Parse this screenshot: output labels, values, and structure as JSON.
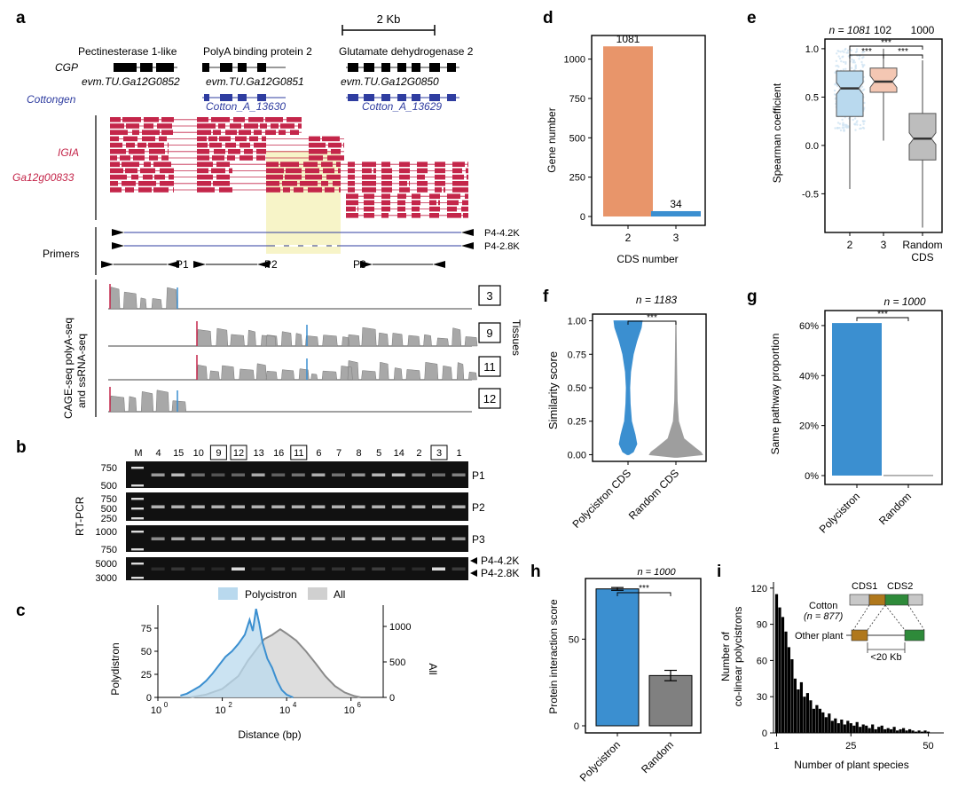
{
  "panels": {
    "a": {
      "label": "a",
      "scale_bar": "2 Kb",
      "genes": [
        "Pectinesterase 1-like",
        "PolyA binding protein 2",
        "Glutamate dehydrogenase 2"
      ],
      "cgp": {
        "label": "CGP",
        "ids": [
          "evm.TU.Ga12G0852",
          "evm.TU.Ga12G0851",
          "evm.TU.Ga12G0850"
        ]
      },
      "cottongen": {
        "label": "Cottongen",
        "ids": [
          "Cotton_A_13630",
          "Cotton_A_13629"
        ]
      },
      "igia": {
        "label": "IGIA",
        "id": "Ga12g00833"
      },
      "primers": {
        "label": "Primers",
        "long": [
          "P4-4.2K",
          "P4-2.8K"
        ],
        "short": [
          "P1",
          "P2",
          "P3"
        ]
      },
      "tracks": {
        "label_line1": "CAGE-seq polyA-seq",
        "label_line2": "and ssRNA-seq",
        "tissues": [
          "3",
          "9",
          "11",
          "12"
        ],
        "side_label": "Tissues"
      }
    },
    "b": {
      "label": "b",
      "lane_labels": [
        "M",
        "4",
        "15",
        "10",
        "9",
        "12",
        "13",
        "16",
        "11",
        "6",
        "7",
        "8",
        "5",
        "14",
        "2",
        "3",
        "1"
      ],
      "boxed_lanes": [
        "9",
        "12",
        "11",
        "3"
      ],
      "side_label": "RT-PCR",
      "gels": [
        {
          "ladder": [
            "750",
            "500"
          ],
          "name": "P1"
        },
        {
          "ladder": [
            "750",
            "500",
            "250"
          ],
          "name": "P2"
        },
        {
          "ladder": [
            "1000",
            "750"
          ],
          "name": "P3"
        },
        {
          "ladder": [
            "5000",
            "3000"
          ],
          "names": [
            "P4-4.2K",
            "P4-2.8K"
          ]
        }
      ]
    },
    "c": {
      "label": "c",
      "chart_data": {
        "type": "area",
        "legend": [
          "Polycistron",
          "All"
        ],
        "legend_position": "top",
        "xlabel": "Distance (bp)",
        "ylabel_left": "Polydistron",
        "ylabel_right": "All",
        "x_scale": "log10",
        "x_ticks": [
          "10",
          "10",
          "10",
          "10"
        ],
        "x_tick_exps": [
          "0",
          "2",
          "4",
          "6"
        ],
        "y_left_ticks": [
          "0",
          "25",
          "50",
          "75"
        ],
        "y_right_ticks": [
          "0",
          "500",
          "1000"
        ],
        "ylim_left": [
          0,
          100
        ],
        "ylim_right": [
          0,
          1300
        ],
        "series": [
          {
            "name": "Polycistron",
            "axis": "left",
            "x_log10": [
              0.7,
              0.9,
              1.1,
              1.3,
              1.5,
              1.7,
              1.9,
              2.1,
              2.3,
              2.5,
              2.7,
              2.85,
              2.95,
              3.05,
              3.15,
              3.25,
              3.4,
              3.55,
              3.7,
              3.85,
              4.0,
              4.2
            ],
            "values": [
              2,
              4,
              8,
              12,
              18,
              26,
              35,
              44,
              50,
              58,
              68,
              84,
              72,
              96,
              80,
              60,
              42,
              32,
              18,
              8,
              3,
              0
            ]
          },
          {
            "name": "All",
            "axis": "right",
            "x_log10": [
              1.0,
              1.5,
              2.0,
              2.5,
              2.8,
              3.1,
              3.3,
              3.55,
              3.8,
              4.0,
              4.3,
              4.6,
              4.9,
              5.2,
              5.5,
              5.8,
              6.1,
              6.3
            ],
            "values": [
              0,
              40,
              120,
              300,
              520,
              700,
              820,
              880,
              960,
              900,
              800,
              650,
              480,
              300,
              160,
              70,
              20,
              0
            ]
          }
        ]
      }
    },
    "d": {
      "label": "d",
      "chart_data": {
        "type": "bar",
        "categories": [
          "2",
          "3"
        ],
        "values": [
          1081,
          34
        ],
        "data_labels": [
          "1081",
          "34"
        ],
        "xlabel": "CDS number",
        "ylabel": "Gene number",
        "ylim": [
          0,
          1150
        ],
        "y_ticks": [
          "0",
          "250",
          "500",
          "750",
          "1000"
        ],
        "colors": [
          "#e8956a",
          "#3b8fd0"
        ]
      }
    },
    "e": {
      "label": "e",
      "n_label": "n = 1081",
      "n_values": [
        "102",
        "1000"
      ],
      "sig": "***",
      "chart_data": {
        "type": "box",
        "categories": [
          "2",
          "3",
          "Random CDS"
        ],
        "category_lines": [
          [
            "2"
          ],
          [
            "3"
          ],
          [
            "Random",
            "CDS"
          ]
        ],
        "ylabel": "Spearman coefficient",
        "ylim": [
          -0.9,
          1.1
        ],
        "y_ticks": [
          "-0.5",
          "0.0",
          "0.5",
          "1.0"
        ],
        "boxes": [
          {
            "q1": 0.3,
            "median": 0.59,
            "q3": 0.77,
            "whisker_low": -0.45,
            "whisker_high": 1.0,
            "color": "#b9d9ee"
          },
          {
            "q1": 0.55,
            "median": 0.66,
            "q3": 0.8,
            "whisker_low": 0.05,
            "whisker_high": 1.0,
            "color": "#f4c7b3"
          },
          {
            "q1": -0.15,
            "median": 0.07,
            "q3": 0.33,
            "whisker_low": -0.85,
            "whisker_high": 0.88,
            "color": "#bdbdbd"
          }
        ]
      }
    },
    "f": {
      "label": "f",
      "n_label": "n = 1183",
      "sig": "***",
      "chart_data": {
        "type": "violin",
        "categories": [
          "Polycistron CDS",
          "Random CDS"
        ],
        "ylabel": "Similarity score",
        "ylim": [
          -0.05,
          1.05
        ],
        "y_ticks": [
          "0.00",
          "0.25",
          "0.50",
          "0.75",
          "1.00"
        ],
        "colors": [
          "#3b8fd0",
          "#9e9e9e"
        ]
      }
    },
    "g": {
      "label": "g",
      "n_label": "n = 1000",
      "sig": "***",
      "chart_data": {
        "type": "bar",
        "categories": [
          "Polycistron",
          "Random"
        ],
        "values": [
          61,
          0.3
        ],
        "ylabel": "Same pathway proportion",
        "ylim": [
          0,
          66
        ],
        "y_ticks": [
          "0%",
          "20%",
          "40%",
          "60%"
        ],
        "colors": [
          "#3b8fd0",
          "#9e9e9e"
        ]
      }
    },
    "h": {
      "label": "h",
      "n_label": "n = 1000",
      "sig": "***",
      "chart_data": {
        "type": "bar",
        "categories": [
          "Polycistron",
          "Random"
        ],
        "values": [
          79,
          29
        ],
        "errors": [
          0.8,
          3
        ],
        "ylabel": "Protein interaction score",
        "ylim": [
          0,
          85
        ],
        "y_ticks": [
          "0",
          "50"
        ],
        "colors": [
          "#3b8fd0",
          "#808080"
        ]
      }
    },
    "i": {
      "label": "i",
      "chart_data": {
        "type": "bar",
        "xlabel": "Number of plant species",
        "ylabel_line1": "Number of",
        "ylabel_line2": "co-linear polycistrons",
        "xlim": [
          0,
          55
        ],
        "ylim": [
          0,
          125
        ],
        "x_ticks": [
          "1",
          "25",
          "50"
        ],
        "y_ticks": [
          "0",
          "30",
          "60",
          "90",
          "120"
        ],
        "x": [
          1,
          2,
          3,
          4,
          5,
          6,
          7,
          8,
          9,
          10,
          11,
          12,
          13,
          14,
          15,
          16,
          17,
          18,
          19,
          20,
          21,
          22,
          23,
          24,
          25,
          26,
          27,
          28,
          29,
          30,
          31,
          32,
          33,
          34,
          35,
          36,
          37,
          38,
          39,
          40,
          41,
          42,
          43,
          44,
          45,
          46,
          47,
          48,
          49,
          50
        ],
        "values": [
          115,
          104,
          96,
          84,
          71,
          61,
          45,
          36,
          42,
          30,
          33,
          27,
          20,
          23,
          20,
          17,
          13,
          16,
          10,
          12,
          8,
          11,
          7,
          10,
          8,
          6,
          9,
          5,
          7,
          6,
          4,
          7,
          3,
          5,
          6,
          3,
          4,
          3,
          5,
          2,
          3,
          4,
          2,
          3,
          2,
          1,
          2,
          1,
          2,
          1
        ]
      },
      "inset": {
        "cotton": "Cotton",
        "cotton_n": "(n = 877)",
        "other": "Other plant",
        "cds": [
          "CDS1",
          "CDS2"
        ],
        "distance": "<20 Kb"
      }
    }
  },
  "colors": {
    "blue": "#3b8fd0",
    "orange": "#e8956a",
    "gene_red": "#c4264a",
    "cottongen_blue": "#2f3da0",
    "grey": "#9e9e9e"
  }
}
